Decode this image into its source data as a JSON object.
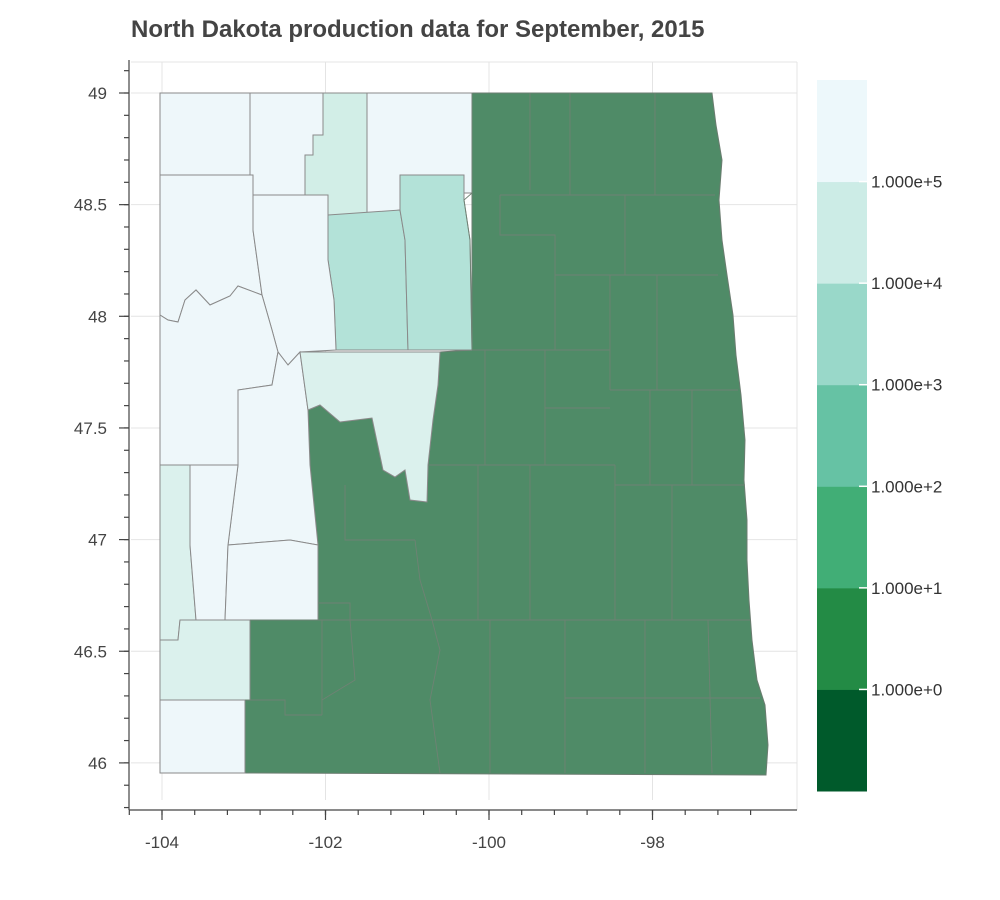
{
  "title": "North Dakota production data for September, 2015",
  "axes": {
    "x_ticks": [
      {
        "value": -104,
        "label": "-104"
      },
      {
        "value": -102,
        "label": "-102"
      },
      {
        "value": -100,
        "label": "-100"
      },
      {
        "value": -98,
        "label": "-98"
      }
    ],
    "y_ticks": [
      {
        "value": 49,
        "label": "49"
      },
      {
        "value": 48.5,
        "label": "48.5"
      },
      {
        "value": 48,
        "label": "48"
      },
      {
        "value": 47.5,
        "label": "47.5"
      },
      {
        "value": 47,
        "label": "47"
      },
      {
        "value": 46.5,
        "label": "46.5"
      },
      {
        "value": 46,
        "label": "46"
      }
    ],
    "xlim": [
      -104.4,
      -96.5
    ],
    "ylim": [
      45.75,
      49.18
    ]
  },
  "colorbar": {
    "label_values": [
      "1.000e+0",
      "1.000e+1",
      "1.000e+2",
      "1.000e+3",
      "1.000e+4",
      "1.000e+5"
    ],
    "bands": [
      "#005a2b",
      "#238b45",
      "#41ae76",
      "#66c2a4",
      "#99d8c9",
      "#ccece6",
      "#edf8fb"
    ]
  },
  "colors": {
    "low_production": "#4f8b67",
    "high_production": "#eef7fa",
    "mid_light": "#dbf1ed",
    "mid": "#b3e2d8",
    "border": "#8a8a8a"
  },
  "chart_data": {
    "type": "choropleth",
    "title": "North Dakota production data for September, 2015",
    "scale": "log",
    "color_levels": [
      1,
      10,
      100,
      1000,
      10000,
      100000
    ],
    "regions": [
      {
        "level": "1.000e+5",
        "region": "northwest"
      },
      {
        "level": "1.000e+5",
        "region": "west-central"
      },
      {
        "level": "1.000e+5",
        "region": "southwest"
      },
      {
        "level": "1.000e+4",
        "region": "north-central strip"
      },
      {
        "level": "1.000e+4",
        "region": "central"
      },
      {
        "level": "1.000e+3",
        "region": "north-central"
      },
      {
        "level": "below 1.000e+0",
        "region": "eastern half"
      }
    ]
  }
}
